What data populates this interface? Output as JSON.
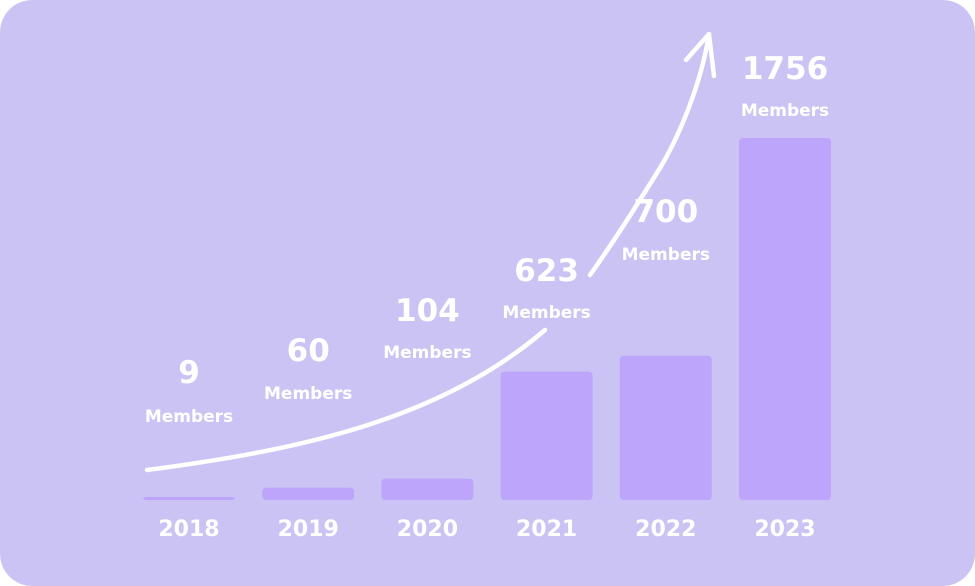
{
  "colors": {
    "background": "#cbc3f4",
    "bar": "#bca5fb",
    "text": "#ffffff",
    "arrow": "#ffffff"
  },
  "chart_data": {
    "type": "bar",
    "categories": [
      "2018",
      "2019",
      "2020",
      "2021",
      "2022",
      "2023"
    ],
    "values": [
      9,
      60,
      104,
      623,
      700,
      1756
    ],
    "value_unit_label": "Members",
    "ylim": [
      0,
      1756
    ],
    "grid": false,
    "legend": "none",
    "annotations": [
      "growth-arrow"
    ]
  }
}
